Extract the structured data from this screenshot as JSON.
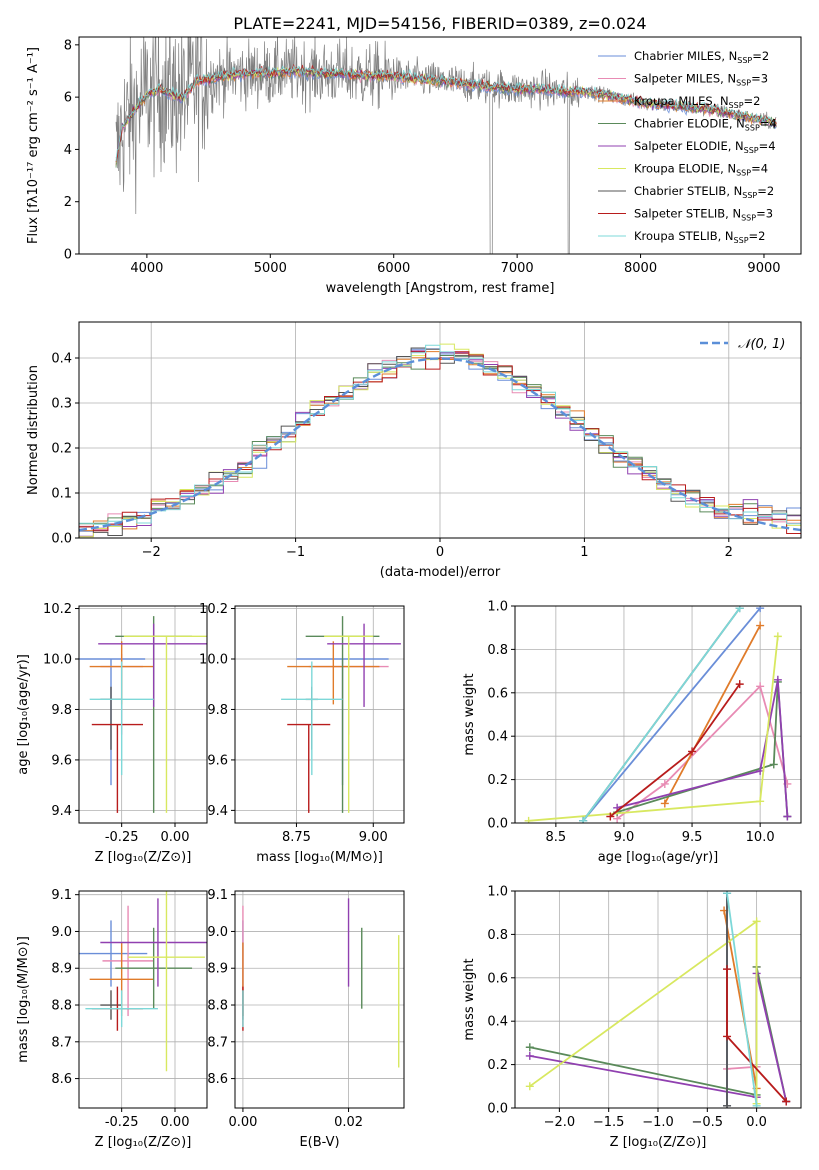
{
  "title": "PLATE=2241, MJD=54156, FIBERID=0389, z=0.024",
  "chart_data": [
    {
      "type": "line",
      "panel": "spectrum",
      "xlabel": "wavelength [Angstrom, rest frame]",
      "ylabel": "Flux [fλ10⁻¹⁷ erg cm⁻² s⁻¹ A⁻¹]",
      "xlim": [
        3450,
        9300
      ],
      "ylim": [
        0,
        8.3
      ],
      "xticks": [
        4000,
        5000,
        6000,
        7000,
        8000,
        9000
      ],
      "yticks": [
        0,
        2,
        4,
        6,
        8
      ],
      "legend_position": "top-right",
      "legend": [
        {
          "label": "Chabrier MILES, N_SSP=2",
          "color": "#6a8ed8"
        },
        {
          "label": "Salpeter MILES, N_SSP=3",
          "color": "#e88bb4"
        },
        {
          "label": "Kroupa MILES, N_SSP=2",
          "color": "#e07b2a"
        },
        {
          "label": "Chabrier ELODIE, N_SSP=4",
          "color": "#5a8a5a"
        },
        {
          "label": "Salpeter ELODIE, N_SSP=4",
          "color": "#9040b0"
        },
        {
          "label": "Kroupa ELODIE, N_SSP=4",
          "color": "#d8e860"
        },
        {
          "label": "Chabrier STELIB, N_SSP=2",
          "color": "#555555"
        },
        {
          "label": "Salpeter STELIB, N_SSP=3",
          "color": "#b81c1c"
        },
        {
          "label": "Kroupa STELIB, N_SSP=2",
          "color": "#7dd8d8"
        }
      ],
      "data_color": "#808080",
      "model_continuum": {
        "x": [
          3750,
          3800,
          3900,
          4000,
          4100,
          4200,
          4300,
          4400,
          4600,
          4800,
          5000,
          5200,
          5400,
          5600,
          5800,
          6000,
          6200,
          6400,
          6600,
          6800,
          7000,
          7200,
          7400,
          7600,
          7800,
          8000,
          8200,
          8400,
          8600,
          8800,
          9000,
          9100
        ],
        "y": [
          3.5,
          4.8,
          5.5,
          6.1,
          6.3,
          6.1,
          6.0,
          6.6,
          6.8,
          6.9,
          6.9,
          7.0,
          6.9,
          6.9,
          6.8,
          6.8,
          6.7,
          6.6,
          6.5,
          6.4,
          6.3,
          6.3,
          6.2,
          6.2,
          6.0,
          5.8,
          5.7,
          5.6,
          5.5,
          5.3,
          5.1,
          5.0
        ]
      }
    },
    {
      "type": "histogram",
      "panel": "residuals",
      "xlabel": "(data-model)/error",
      "ylabel": "Normed distribution",
      "xlim": [
        -2.5,
        2.5
      ],
      "ylim": [
        0,
        0.48
      ],
      "xticks": [
        -2,
        -1,
        0,
        1,
        2
      ],
      "yticks": [
        0.0,
        0.1,
        0.2,
        0.3,
        0.4
      ],
      "grid": true,
      "legend_position": "top-right",
      "reference_curve": {
        "label": "𝒩(0, 1)",
        "color": "#5b8fd8",
        "style": "dashed"
      },
      "bin_width": 0.1
    },
    {
      "type": "scatter",
      "panel": "age-vs-Z",
      "xlabel": "Z [log₁₀(Z/Z⊙)]",
      "ylabel": "age  [log₁₀(age/yr)]",
      "xlim": [
        -0.45,
        0.15
      ],
      "ylim": [
        9.35,
        10.21
      ],
      "xticks": [
        -0.25,
        0.0
      ],
      "yticks": [
        9.4,
        9.6,
        9.8,
        10.0,
        10.2
      ],
      "grid": true,
      "points": [
        {
          "x": -0.3,
          "y": 10.0,
          "xerr": 0.16,
          "yerr_lo": 0.5,
          "yerr_hi": 0.0,
          "color": "#6a8ed8"
        },
        {
          "x": -0.25,
          "y": 9.97,
          "xerr": 0.1,
          "yerr_lo": 0.27,
          "yerr_hi": 0.05,
          "color": "#e88bb4"
        },
        {
          "x": -0.25,
          "y": 9.97,
          "xerr": 0.15,
          "yerr_lo": 0.15,
          "yerr_hi": 0.1,
          "color": "#e07b2a"
        },
        {
          "x": -0.1,
          "y": 10.09,
          "xerr": 0.18,
          "yerr_lo": 0.7,
          "yerr_hi": 0.08,
          "color": "#5a8a5a"
        },
        {
          "x": -0.1,
          "y": 10.06,
          "xerr": 0.26,
          "yerr_lo": 0.25,
          "yerr_hi": 0.08,
          "color": "#9040b0"
        },
        {
          "x": -0.04,
          "y": 10.09,
          "xerr": 0.2,
          "yerr_lo": 0.7,
          "yerr_hi": 0.0,
          "color": "#d8e860"
        },
        {
          "x": -0.3,
          "y": 9.84,
          "xerr": 0.05,
          "yerr_lo": 0.2,
          "yerr_hi": 0.05,
          "color": "#555555"
        },
        {
          "x": -0.27,
          "y": 9.74,
          "xerr": 0.12,
          "yerr_lo": 0.35,
          "yerr_hi": 0.0,
          "color": "#b81c1c"
        },
        {
          "x": -0.25,
          "y": 9.84,
          "xerr": 0.15,
          "yerr_lo": 0.3,
          "yerr_hi": 0.15,
          "color": "#7dd8d8"
        }
      ]
    },
    {
      "type": "scatter",
      "panel": "age-vs-mass",
      "xlabel": "mass [log₁₀(M/M⊙)]",
      "ylabel": "",
      "xlim": [
        8.55,
        9.1
      ],
      "ylim": [
        9.35,
        10.21
      ],
      "xticks": [
        8.75,
        9.0
      ],
      "yticks": [
        9.4,
        9.6,
        9.8,
        10.0,
        10.2
      ],
      "grid": true,
      "points": [
        {
          "x": 8.9,
          "y": 10.0,
          "xerr": 0.15,
          "yerr_lo": 0.5,
          "yerr_hi": 0.0,
          "color": "#6a8ed8"
        },
        {
          "x": 8.92,
          "y": 9.97,
          "xerr": 0.13,
          "yerr_lo": 0.27,
          "yerr_hi": 0.05,
          "color": "#e88bb4"
        },
        {
          "x": 8.87,
          "y": 9.97,
          "xerr": 0.15,
          "yerr_lo": 0.15,
          "yerr_hi": 0.1,
          "color": "#e07b2a"
        },
        {
          "x": 8.9,
          "y": 10.09,
          "xerr": 0.12,
          "yerr_lo": 0.7,
          "yerr_hi": 0.08,
          "color": "#5a8a5a"
        },
        {
          "x": 8.97,
          "y": 10.06,
          "xerr": 0.12,
          "yerr_lo": 0.25,
          "yerr_hi": 0.08,
          "color": "#9040b0"
        },
        {
          "x": 8.92,
          "y": 10.09,
          "xerr": 0.08,
          "yerr_lo": 0.7,
          "yerr_hi": 0.0,
          "color": "#d8e860"
        },
        {
          "x": 8.8,
          "y": 9.84,
          "xerr": 0.02,
          "yerr_lo": 0.2,
          "yerr_hi": 0.05,
          "color": "#555555"
        },
        {
          "x": 8.79,
          "y": 9.74,
          "xerr": 0.07,
          "yerr_lo": 0.35,
          "yerr_hi": 0.0,
          "color": "#b81c1c"
        },
        {
          "x": 8.8,
          "y": 9.84,
          "xerr": 0.1,
          "yerr_lo": 0.3,
          "yerr_hi": 0.15,
          "color": "#7dd8d8"
        }
      ]
    },
    {
      "type": "line",
      "panel": "weight-vs-age",
      "xlabel": "age  [log₁₀(age/yr)]",
      "ylabel": "mass weight",
      "xlim": [
        8.2,
        10.3
      ],
      "ylim": [
        0,
        1.0
      ],
      "xticks": [
        8.5,
        9.0,
        9.5,
        10.0
      ],
      "yticks": [
        0.0,
        0.2,
        0.4,
        0.6,
        0.8,
        1.0
      ],
      "grid": true,
      "series": [
        {
          "color": "#6a8ed8",
          "x": [
            8.7,
            10.0
          ],
          "y": [
            0.01,
            0.99
          ]
        },
        {
          "color": "#e88bb4",
          "x": [
            8.95,
            9.3,
            10.0,
            10.2
          ],
          "y": [
            0.02,
            0.18,
            0.63,
            0.18
          ]
        },
        {
          "color": "#e07b2a",
          "x": [
            9.3,
            10.0
          ],
          "y": [
            0.09,
            0.91
          ]
        },
        {
          "color": "#5a8a5a",
          "x": [
            8.95,
            10.1,
            10.13,
            10.2
          ],
          "y": [
            0.05,
            0.27,
            0.65,
            0.03
          ]
        },
        {
          "color": "#9040b0",
          "x": [
            8.95,
            10.0,
            10.13,
            10.2
          ],
          "y": [
            0.07,
            0.24,
            0.66,
            0.03
          ]
        },
        {
          "color": "#d8e860",
          "x": [
            8.3,
            10.0,
            10.13
          ],
          "y": [
            0.01,
            0.1,
            0.86
          ]
        },
        {
          "color": "#555555",
          "x": [
            8.7,
            9.85
          ],
          "y": [
            0.01,
            0.99
          ]
        },
        {
          "color": "#b81c1c",
          "x": [
            8.9,
            9.5,
            9.85
          ],
          "y": [
            0.03,
            0.33,
            0.64
          ]
        },
        {
          "color": "#7dd8d8",
          "x": [
            8.7,
            9.85
          ],
          "y": [
            0.01,
            0.99
          ]
        }
      ]
    },
    {
      "type": "scatter",
      "panel": "mass-vs-Z",
      "xlabel": "Z [log₁₀(Z/Z⊙)]",
      "ylabel": "mass [log₁₀(M/M⊙)]",
      "xlim": [
        -0.45,
        0.15
      ],
      "ylim": [
        8.52,
        9.11
      ],
      "xticks": [
        -0.25,
        0.0
      ],
      "yticks": [
        8.6,
        8.7,
        8.8,
        8.9,
        9.0,
        9.1
      ],
      "grid": true,
      "points": [
        {
          "x": -0.3,
          "y": 8.94,
          "xerr": 0.17,
          "yerr": 0.09,
          "color": "#6a8ed8"
        },
        {
          "x": -0.22,
          "y": 8.92,
          "xerr": 0.12,
          "yerr": 0.15,
          "color": "#e88bb4"
        },
        {
          "x": -0.25,
          "y": 8.87,
          "xerr": 0.15,
          "yerr": 0.1,
          "color": "#e07b2a"
        },
        {
          "x": -0.1,
          "y": 8.9,
          "xerr": 0.18,
          "yerr": 0.11,
          "color": "#5a8a5a"
        },
        {
          "x": -0.08,
          "y": 8.97,
          "xerr": 0.27,
          "yerr": 0.12,
          "color": "#9040b0"
        },
        {
          "x": -0.04,
          "y": 8.93,
          "xerr": 0.18,
          "yerr": 0.31,
          "color": "#d8e860"
        },
        {
          "x": -0.3,
          "y": 8.8,
          "xerr": 0.05,
          "yerr": 0.04,
          "color": "#555555"
        },
        {
          "x": -0.27,
          "y": 8.79,
          "xerr": 0.12,
          "yerr": 0.06,
          "color": "#b81c1c"
        },
        {
          "x": -0.25,
          "y": 8.79,
          "xerr": 0.17,
          "yerr": 0.05,
          "color": "#7dd8d8"
        }
      ]
    },
    {
      "type": "scatter",
      "panel": "mass-vs-EBV",
      "xlabel": "E(B-V)",
      "ylabel": "",
      "xlim": [
        -0.0015,
        0.0305
      ],
      "ylim": [
        8.52,
        9.11
      ],
      "xticks": [
        0.0,
        0.02
      ],
      "yticks": [
        8.6,
        8.7,
        8.8,
        8.9,
        9.0,
        9.1
      ],
      "grid": true,
      "points": [
        {
          "x": 0.0,
          "y": 8.94,
          "yerr": 0.09,
          "color": "#6a8ed8"
        },
        {
          "x": 0.0,
          "y": 8.92,
          "yerr": 0.15,
          "color": "#e88bb4"
        },
        {
          "x": 0.0,
          "y": 8.87,
          "yerr": 0.1,
          "color": "#e07b2a"
        },
        {
          "x": 0.0225,
          "y": 8.9,
          "yerr": 0.11,
          "color": "#5a8a5a"
        },
        {
          "x": 0.02,
          "y": 8.97,
          "yerr": 0.12,
          "color": "#9040b0"
        },
        {
          "x": 0.0295,
          "y": 8.81,
          "yerr": 0.18,
          "color": "#d8e860"
        },
        {
          "x": 0.0,
          "y": 8.8,
          "yerr": 0.04,
          "color": "#555555"
        },
        {
          "x": 0.0,
          "y": 8.79,
          "yerr": 0.06,
          "color": "#b81c1c"
        },
        {
          "x": 0.0,
          "y": 8.79,
          "yerr": 0.05,
          "color": "#7dd8d8"
        }
      ]
    },
    {
      "type": "line",
      "panel": "weight-vs-Z",
      "xlabel": "Z [log₁₀(Z/Z⊙)]",
      "ylabel": "mass weight",
      "xlim": [
        -2.45,
        0.45
      ],
      "ylim": [
        0,
        1.0
      ],
      "xticks": [
        -2.0,
        -1.5,
        -1.0,
        -0.5,
        0.0
      ],
      "yticks": [
        0.0,
        0.2,
        0.4,
        0.6,
        0.8,
        1.0
      ],
      "grid": true,
      "series": [
        {
          "color": "#6a8ed8",
          "x": [
            -0.3,
            -0.3
          ],
          "y": [
            0.01,
            0.99
          ]
        },
        {
          "color": "#e88bb4",
          "x": [
            -0.3,
            0.0,
            0.0,
            0.0
          ],
          "y": [
            0.18,
            0.19,
            0.65,
            0.05
          ]
        },
        {
          "color": "#e07b2a",
          "x": [
            -0.33,
            0.0
          ],
          "y": [
            0.91,
            0.09
          ]
        },
        {
          "color": "#5a8a5a",
          "x": [
            -2.3,
            0.0,
            0.0,
            0.3
          ],
          "y": [
            0.28,
            0.06,
            0.65,
            0.03
          ]
        },
        {
          "color": "#9040b0",
          "x": [
            -2.3,
            0.0,
            0.0,
            0.3
          ],
          "y": [
            0.24,
            0.05,
            0.62,
            0.03
          ]
        },
        {
          "color": "#d8e860",
          "x": [
            -2.3,
            0.0,
            0.0
          ],
          "y": [
            0.1,
            0.86,
            0.02
          ]
        },
        {
          "color": "#555555",
          "x": [
            -0.3,
            -0.3
          ],
          "y": [
            0.01,
            0.99
          ]
        },
        {
          "color": "#b81c1c",
          "x": [
            -0.3,
            -0.3,
            0.3
          ],
          "y": [
            0.64,
            0.33,
            0.03
          ]
        },
        {
          "color": "#7dd8d8",
          "x": [
            -0.3,
            0.0
          ],
          "y": [
            0.99,
            0.01
          ]
        }
      ]
    }
  ]
}
